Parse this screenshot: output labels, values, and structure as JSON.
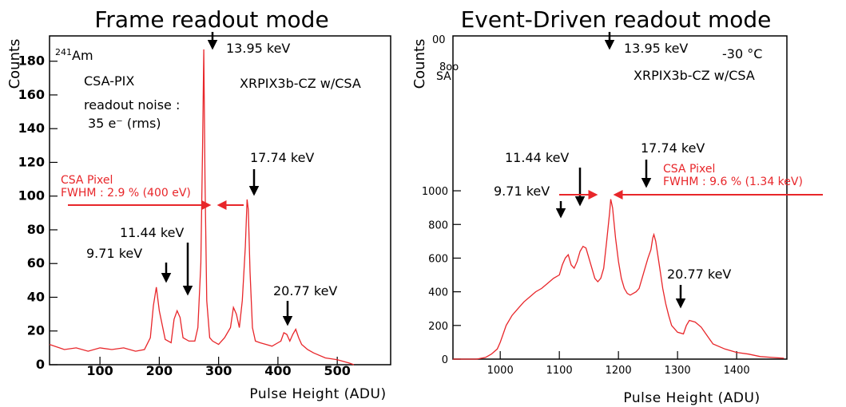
{
  "chart_data": [
    {
      "type": "line",
      "title": "Frame readout mode",
      "xlabel": "Pulse Height (ADU)",
      "ylabel": "Counts",
      "xlim": [
        15,
        590
      ],
      "ylim": [
        0,
        195
      ],
      "xticks": [
        100,
        200,
        300,
        400,
        500
      ],
      "yticks": [
        0,
        20,
        40,
        60,
        80,
        100,
        120,
        140,
        160,
        180
      ],
      "line_color": "#e8262a",
      "series": [
        {
          "x": [
            15,
            40,
            60,
            80,
            100,
            120,
            140,
            160,
            175,
            185,
            190,
            195,
            200,
            210,
            220,
            225,
            230,
            235,
            240,
            250,
            260,
            265,
            270,
            273,
            275,
            277,
            280,
            285,
            290,
            300,
            310,
            320,
            325,
            330,
            335,
            340,
            345,
            348,
            350,
            353,
            357,
            362,
            370,
            380,
            390,
            400,
            405,
            410,
            415,
            420,
            425,
            430,
            435,
            440,
            450,
            460,
            480,
            500,
            520,
            528
          ],
          "y": [
            12,
            9,
            10,
            8,
            10,
            9,
            10,
            8,
            9,
            16,
            35,
            46,
            32,
            15,
            13,
            27,
            32,
            28,
            16,
            14,
            14,
            22,
            60,
            130,
            187,
            110,
            38,
            16,
            14,
            12,
            16,
            22,
            34,
            30,
            22,
            38,
            70,
            98,
            92,
            55,
            22,
            14,
            13,
            12,
            11,
            13,
            14,
            19,
            18,
            14,
            18,
            21,
            16,
            12,
            9,
            7,
            4,
            3,
            1,
            0
          ]
        }
      ],
      "annotations": {
        "source": "241Am",
        "source_sup": "241",
        "source_main": "Am",
        "detector": "CSA-PIX",
        "noise_label": "readout noise :",
        "noise_value": "35 e⁻ (rms)",
        "device": "XRPIX3b-CZ w/CSA",
        "peak_13_95": "13.95 keV",
        "peak_17_74": "17.74 keV",
        "peak_11_44": "11.44 keV",
        "peak_9_71": "9.71 keV",
        "peak_20_77": "20.77 keV",
        "pixel_label": "CSA Pixel",
        "fwhm": "FWHM : 2.9 % (400 eV)"
      }
    },
    {
      "type": "line",
      "title": "Event-Driven readout mode",
      "xlabel": "Pulse Height (ADU)",
      "ylabel": "Counts",
      "xlim": [
        920,
        1485
      ],
      "ylim": [
        0,
        1920
      ],
      "xticks": [
        1000,
        1100,
        1200,
        1300,
        1400
      ],
      "yticks": [
        0,
        200,
        400,
        600,
        800,
        1000
      ],
      "line_color": "#e8262a",
      "series": [
        {
          "x": [
            920,
            960,
            975,
            985,
            995,
            1000,
            1005,
            1010,
            1020,
            1030,
            1040,
            1050,
            1060,
            1070,
            1080,
            1090,
            1100,
            1105,
            1110,
            1115,
            1120,
            1125,
            1130,
            1135,
            1140,
            1145,
            1150,
            1155,
            1160,
            1165,
            1170,
            1175,
            1180,
            1185,
            1187,
            1190,
            1195,
            1200,
            1205,
            1210,
            1215,
            1220,
            1225,
            1230,
            1235,
            1240,
            1245,
            1250,
            1255,
            1258,
            1260,
            1263,
            1270,
            1275,
            1280,
            1285,
            1290,
            1300,
            1310,
            1315,
            1320,
            1330,
            1340,
            1350,
            1360,
            1380,
            1400,
            1420,
            1440,
            1460,
            1480
          ],
          "y": [
            0,
            0,
            10,
            30,
            60,
            100,
            150,
            200,
            260,
            300,
            340,
            370,
            400,
            420,
            450,
            480,
            500,
            560,
            600,
            620,
            560,
            540,
            580,
            640,
            670,
            660,
            600,
            540,
            480,
            460,
            480,
            540,
            700,
            870,
            950,
            900,
            720,
            580,
            480,
            420,
            390,
            380,
            390,
            400,
            420,
            480,
            540,
            600,
            650,
            720,
            740,
            700,
            540,
            420,
            330,
            260,
            200,
            160,
            150,
            200,
            230,
            220,
            190,
            140,
            90,
            60,
            40,
            30,
            15,
            10,
            5
          ]
        }
      ],
      "annotations": {
        "temperature": "-30 °C",
        "device": "XRPIX3b-CZ w/CSA",
        "peak_13_95": "13.95 keV",
        "peak_17_74": "17.74 keV",
        "peak_11_44": "11.44 keV",
        "peak_9_71": "9.71 keV",
        "peak_20_77": "20.77 keV",
        "pixel_label": "CSA Pixel",
        "fwhm": "FWHM :  9.6 % (1.34 keV)",
        "stray_tick_top": "00",
        "stray_tick_side": "SA",
        "stray_tick_200": "8oo"
      }
    }
  ]
}
